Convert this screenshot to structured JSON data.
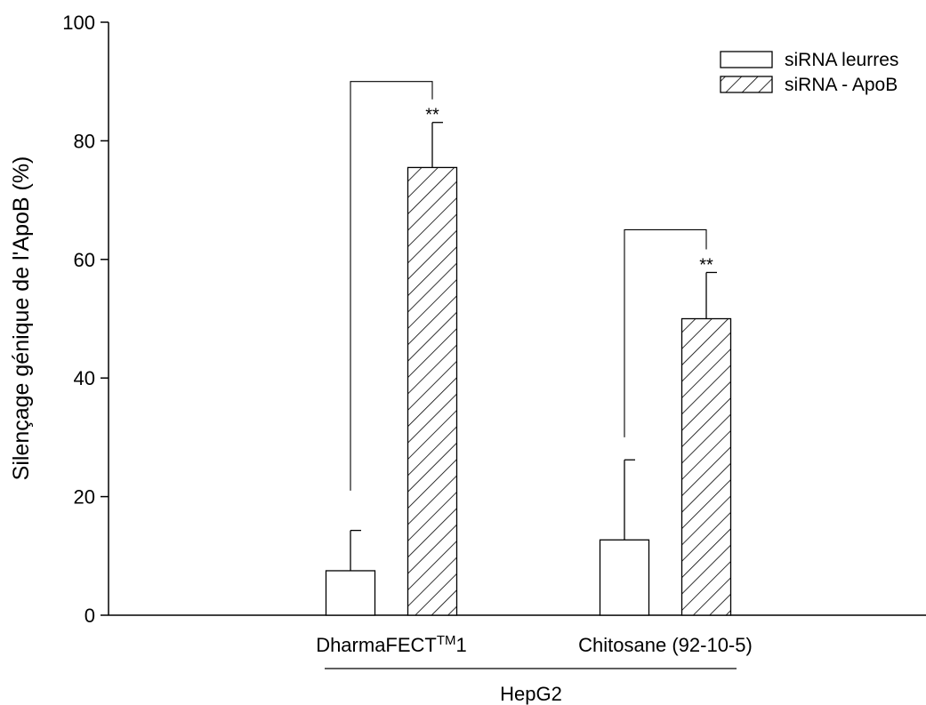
{
  "chart_data": {
    "type": "bar",
    "ylabel": "Silençage génique de l'ApoB (%)",
    "xlabel": "HepG2",
    "ylim": [
      0,
      100
    ],
    "yticks": [
      0,
      20,
      40,
      60,
      80,
      100
    ],
    "categories": [
      {
        "label": "DharmaFECT",
        "superscript": "TM",
        "suffix": "1"
      },
      {
        "label": "Chitosane (92-10-5)",
        "superscript": "",
        "suffix": ""
      }
    ],
    "series": [
      {
        "name": "siRNA leurres",
        "pattern": "none",
        "values": [
          7.5,
          12.7
        ],
        "errors": [
          6.8,
          13.5
        ]
      },
      {
        "name": "siRNA - ApoB",
        "pattern": "hatch",
        "values": [
          75.5,
          50.0
        ],
        "errors": [
          7.6,
          7.8
        ]
      }
    ],
    "significance": [
      {
        "category": 0,
        "from": 21,
        "to": 90,
        "label": "**"
      },
      {
        "category": 1,
        "from": 30,
        "to": 65,
        "label": "**"
      }
    ],
    "legend": "top-right"
  }
}
